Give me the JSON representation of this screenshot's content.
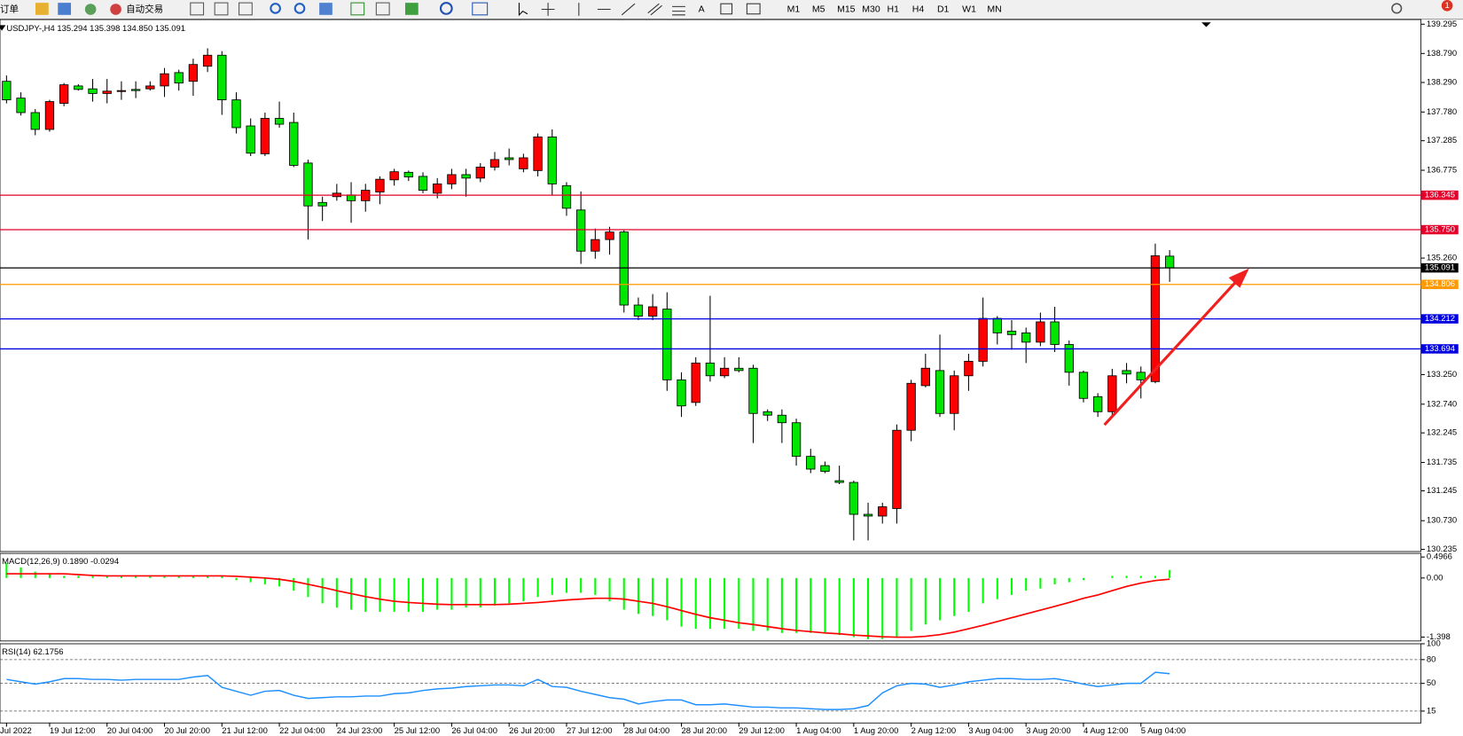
{
  "toolbar": {
    "order_label": "订单",
    "auto_trade": "自动交易",
    "text_tool": "A",
    "timeframes": [
      "M1",
      "M5",
      "M15",
      "M30",
      "H1",
      "H4",
      "D1",
      "W1",
      "MN"
    ],
    "alert_count": 1
  },
  "chart_data": {
    "type": "candlestick",
    "title": "USDJPY-,H4 135.294 135.398 134.850 135.091",
    "up_color": "#ff0000",
    "down_color": "#00e600",
    "categories": [
      "Jul 2022",
      null,
      null,
      "19 Jul 12:00",
      null,
      null,
      null,
      "20 Jul 04:00",
      null,
      null,
      null,
      "20 Jul 20:00",
      null,
      null,
      null,
      "21 Jul 12:00",
      null,
      null,
      null,
      "22 Jul 04:00",
      null,
      null,
      null,
      "24 Jul 23:00",
      null,
      null,
      null,
      "25 Jul 12:00",
      null,
      null,
      null,
      "26 Jul 04:00",
      null,
      null,
      null,
      "26 Jul 20:00",
      null,
      null,
      null,
      "27 Jul 12:00",
      null,
      null,
      null,
      "28 Jul 04:00",
      null,
      null,
      null,
      "28 Jul 20:00",
      null,
      null,
      null,
      "29 Jul 12:00",
      null,
      null,
      null,
      "1 Aug 04:00",
      null,
      null,
      null,
      "1 Aug 20:00",
      null,
      null,
      null,
      "2 Aug 12:00",
      null,
      null,
      null,
      "3 Aug 04:00",
      null,
      null,
      null,
      "3 Aug 20:00",
      null,
      null,
      null,
      "4 Aug 12:00",
      null,
      null,
      null,
      "5 Aug 04:00",
      null,
      null
    ],
    "open": [
      138.31,
      138.02,
      137.77,
      137.48,
      137.93,
      138.23,
      138.18,
      138.1,
      138.14,
      138.17,
      138.18,
      138.23,
      138.46,
      138.31,
      138.57,
      138.76,
      137.99,
      137.54,
      137.06,
      137.67,
      137.6,
      136.9,
      136.22,
      136.32,
      136.35,
      136.25,
      136.4,
      136.61,
      136.74,
      136.67,
      136.38,
      136.54,
      136.7,
      136.64,
      136.83,
      136.99,
      136.8,
      136.77,
      137.35,
      136.51,
      136.09,
      135.38,
      135.58,
      135.71,
      134.45,
      134.26,
      134.38,
      133.16,
      132.77,
      133.45,
      133.23,
      133.36,
      133.36,
      132.61,
      132.55,
      132.42,
      131.84,
      131.68,
      131.42,
      131.39,
      130.84,
      130.81,
      130.94,
      132.29,
      133.06,
      133.32,
      132.58,
      133.23,
      133.48,
      134.22,
      134.0,
      133.97,
      133.81,
      134.16,
      133.77,
      133.29,
      132.87,
      132.61,
      133.32,
      133.29,
      133.13,
      135.294
    ],
    "high": [
      138.41,
      138.12,
      137.83,
      137.99,
      138.28,
      138.26,
      138.35,
      138.35,
      138.31,
      138.31,
      138.31,
      138.54,
      138.51,
      138.7,
      138.88,
      138.83,
      138.12,
      137.67,
      137.77,
      137.96,
      137.77,
      136.96,
      136.32,
      136.54,
      136.57,
      136.54,
      136.67,
      136.8,
      136.77,
      136.74,
      136.64,
      136.8,
      136.8,
      136.9,
      137.09,
      137.15,
      137.06,
      137.41,
      137.48,
      136.57,
      136.41,
      135.77,
      135.8,
      135.74,
      134.58,
      134.64,
      134.67,
      133.29,
      133.55,
      134.61,
      133.55,
      133.55,
      133.42,
      132.65,
      132.65,
      132.49,
      131.97,
      131.75,
      131.68,
      131.42,
      131.04,
      131.04,
      132.39,
      133.16,
      133.61,
      133.94,
      133.32,
      133.61,
      134.58,
      134.26,
      134.19,
      134.06,
      134.32,
      134.42,
      133.84,
      133.32,
      132.93,
      133.35,
      133.45,
      133.39,
      135.51,
      135.398
    ],
    "low": [
      137.93,
      137.72,
      137.38,
      137.44,
      137.88,
      138.15,
      137.96,
      137.93,
      137.99,
      138.02,
      138.15,
      138.04,
      138.15,
      138.06,
      138.47,
      137.73,
      137.41,
      137.02,
      137.02,
      137.51,
      136.83,
      135.58,
      135.9,
      136.25,
      135.87,
      136.06,
      136.19,
      136.51,
      136.59,
      136.38,
      136.29,
      136.45,
      136.32,
      136.57,
      136.77,
      136.86,
      136.74,
      136.67,
      136.35,
      135.99,
      135.16,
      135.25,
      135.32,
      134.32,
      134.19,
      134.19,
      132.97,
      132.52,
      132.71,
      133.13,
      133.19,
      133.29,
      132.07,
      132.45,
      132.07,
      131.68,
      131.55,
      131.55,
      131.36,
      130.39,
      130.39,
      130.68,
      130.68,
      132.1,
      133.03,
      132.52,
      132.29,
      132.97,
      133.39,
      133.77,
      133.68,
      133.45,
      133.74,
      133.64,
      133.06,
      132.77,
      132.52,
      132.55,
      133.1,
      132.84,
      133.1,
      134.85
    ],
    "close": [
      137.99,
      137.77,
      137.48,
      137.96,
      138.25,
      138.17,
      138.1,
      138.14,
      138.15,
      138.15,
      138.23,
      138.44,
      138.28,
      138.6,
      138.76,
      137.99,
      137.51,
      137.07,
      137.67,
      137.57,
      136.86,
      136.16,
      136.16,
      136.38,
      136.25,
      136.43,
      136.62,
      136.75,
      136.66,
      136.43,
      136.54,
      136.7,
      136.64,
      136.83,
      136.96,
      136.96,
      136.99,
      137.35,
      136.54,
      136.12,
      135.38,
      135.58,
      135.71,
      134.45,
      134.26,
      134.42,
      133.16,
      132.71,
      133.45,
      133.23,
      133.36,
      133.32,
      132.58,
      132.55,
      132.42,
      131.84,
      131.62,
      131.58,
      131.39,
      130.84,
      130.81,
      130.97,
      132.29,
      133.1,
      133.36,
      132.58,
      133.23,
      133.48,
      134.22,
      133.97,
      133.94,
      133.81,
      134.16,
      133.77,
      133.29,
      132.84,
      132.61,
      133.23,
      133.26,
      133.16,
      135.3,
      135.091
    ],
    "ylim": [
      130.198,
      139.375
    ],
    "yticks": [
      139.295,
      {
        "value": 138.79,
        "label": "138.790"
      },
      {
        "value": 138.29,
        "label": "138.290"
      },
      {
        "value": 137.78,
        "label": "137.780"
      },
      137.285,
      136.775,
      {
        "value": 135.26,
        "label": "135.260"
      },
      {
        "value": 133.25,
        "label": "133.250"
      },
      {
        "value": 132.74,
        "label": "132.740"
      },
      132.245,
      131.735,
      131.245,
      {
        "value": 130.73,
        "label": "130.730"
      },
      130.235
    ],
    "levels": [
      {
        "value": 136.345,
        "label": "136.345",
        "color": "#e4002b"
      },
      {
        "value": 135.75,
        "label": "135.750",
        "color": "#e4002b"
      },
      {
        "value": 135.091,
        "label": "135.091",
        "color": "#000000"
      },
      {
        "value": 134.806,
        "label": "134.806",
        "color": "#ff9900"
      },
      {
        "value": 134.212,
        "label": "134.212",
        "color": "#0000e0"
      },
      {
        "value": 133.694,
        "label": "133.694",
        "color": "#0000e0"
      }
    ],
    "macd": {
      "title": "MACD(12,26,9) 0.1890 -0.0294",
      "ylim": [
        -1.49,
        0.56
      ],
      "yticks": [
        0.4966,
        {
          "value": 0,
          "label": "0.00"
        },
        -1.398
      ],
      "bar_color": "#00ff00",
      "signal_color": "#ff0000",
      "values": [
        0.35,
        0.25,
        0.15,
        0.1,
        0.05,
        0.05,
        0.05,
        0.05,
        0.05,
        0.05,
        0.05,
        0.05,
        0.05,
        0.05,
        0.05,
        0.05,
        -0.05,
        -0.1,
        -0.15,
        -0.2,
        -0.3,
        -0.45,
        -0.6,
        -0.7,
        -0.75,
        -0.8,
        -0.8,
        -0.8,
        -0.8,
        -0.8,
        -0.75,
        -0.75,
        -0.7,
        -0.7,
        -0.65,
        -0.6,
        -0.55,
        -0.45,
        -0.4,
        -0.35,
        -0.35,
        -0.4,
        -0.55,
        -0.75,
        -0.85,
        -0.9,
        -1.0,
        -1.15,
        -1.2,
        -1.2,
        -1.2,
        -1.2,
        -1.25,
        -1.25,
        -1.3,
        -1.3,
        -1.3,
        -1.3,
        -1.35,
        -1.4,
        -1.45,
        -1.45,
        -1.4,
        -1.25,
        -1.1,
        -1.0,
        -0.9,
        -0.8,
        -0.6,
        -0.5,
        -0.4,
        -0.3,
        -0.25,
        -0.15,
        -0.1,
        -0.05,
        0.0,
        0.05,
        0.05,
        0.05,
        0.05,
        0.189
      ],
      "signal": [
        0.1,
        0.1,
        0.1,
        0.1,
        0.1,
        0.08,
        0.06,
        0.05,
        0.05,
        0.05,
        0.05,
        0.05,
        0.05,
        0.05,
        0.05,
        0.05,
        0.04,
        0.02,
        0,
        -0.03,
        -0.08,
        -0.15,
        -0.22,
        -0.3,
        -0.37,
        -0.44,
        -0.5,
        -0.55,
        -0.58,
        -0.6,
        -0.62,
        -0.63,
        -0.63,
        -0.63,
        -0.63,
        -0.62,
        -0.6,
        -0.58,
        -0.55,
        -0.52,
        -0.5,
        -0.48,
        -0.48,
        -0.5,
        -0.55,
        -0.6,
        -0.68,
        -0.77,
        -0.86,
        -0.94,
        -1.0,
        -1.06,
        -1.1,
        -1.15,
        -1.2,
        -1.24,
        -1.27,
        -1.3,
        -1.32,
        -1.35,
        -1.37,
        -1.39,
        -1.4,
        -1.4,
        -1.38,
        -1.34,
        -1.28,
        -1.2,
        -1.12,
        -1.03,
        -0.94,
        -0.85,
        -0.76,
        -0.67,
        -0.58,
        -0.48,
        -0.4,
        -0.3,
        -0.2,
        -0.12,
        -0.06,
        -0.0294
      ]
    },
    "rsi": {
      "title": "RSI(14) 62.1756",
      "ylim": [
        0,
        100
      ],
      "yticks": [
        100,
        80,
        50,
        15
      ],
      "levels": [
        80,
        50,
        15
      ],
      "color": "#1e90ff",
      "values": [
        55,
        52,
        49,
        52,
        56,
        56,
        55,
        55,
        54,
        55,
        55,
        55,
        55,
        58,
        60,
        45,
        40,
        35,
        40,
        41,
        35,
        31,
        32,
        33,
        33,
        34,
        34,
        37,
        38,
        41,
        43,
        44,
        46,
        47,
        48,
        48,
        47,
        55,
        46,
        45,
        40,
        36,
        32,
        30,
        24,
        27,
        29,
        29,
        23,
        23,
        24,
        22,
        20,
        20,
        19,
        19,
        18,
        17,
        17,
        18,
        22,
        38,
        47,
        50,
        49,
        45,
        48,
        52,
        54,
        56,
        56,
        55,
        55,
        56,
        53,
        49,
        46,
        48,
        50,
        50,
        64,
        62.1756
      ]
    }
  }
}
